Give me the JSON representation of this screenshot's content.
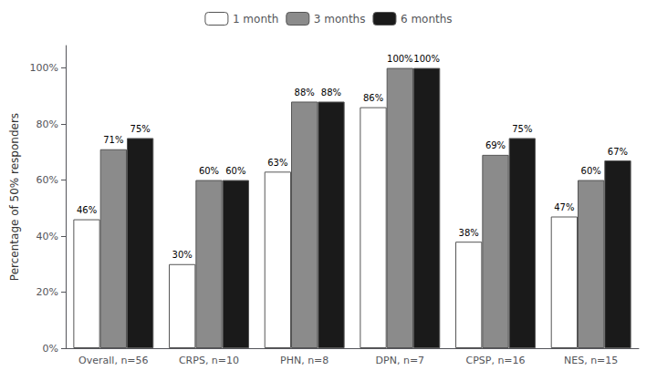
{
  "chart_data": {
    "type": "bar",
    "ylabel": "Percentage of 50% responders",
    "categories": [
      "Overall, n=56",
      "CRPS, n=10",
      "PHN, n=8",
      "DPN, n=7",
      "CPSP, n=16",
      "NES, n=15"
    ],
    "series": [
      {
        "name": "1 month",
        "color": "#ffffff",
        "values": [
          46,
          30,
          63,
          86,
          38,
          47
        ],
        "value_labels": [
          "46%",
          "30%",
          "63%",
          "86%",
          "38%",
          "47%"
        ]
      },
      {
        "name": "3 months",
        "color": "#8b8b8b",
        "values": [
          71,
          60,
          88,
          100,
          69,
          60
        ],
        "value_labels": [
          "71%",
          "60%",
          "88%",
          "100%",
          "69%",
          "60%"
        ]
      },
      {
        "name": "6 months",
        "color": "#1a1a1a",
        "values": [
          75,
          60,
          88,
          100,
          75,
          67
        ],
        "value_labels": [
          "75%",
          "60%",
          "88%",
          "100%",
          "75%",
          "67%"
        ]
      }
    ],
    "ylim": [
      0,
      108
    ],
    "yticks": [
      {
        "value": 0,
        "label": "0%"
      },
      {
        "value": 20,
        "label": "20%"
      },
      {
        "value": 40,
        "label": "40%"
      },
      {
        "value": 60,
        "label": "60%"
      },
      {
        "value": 80,
        "label": "80%"
      },
      {
        "value": 100,
        "label": "100%"
      }
    ],
    "grid": false,
    "legend": "top",
    "data_labels": true
  }
}
